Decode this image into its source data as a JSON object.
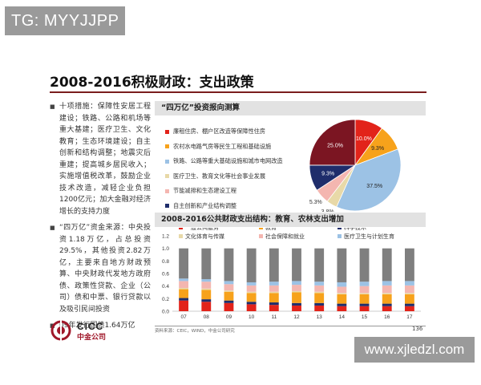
{
  "watermark_top": "TG: MYYJJPP",
  "watermark_bottom": "www.xjledzl.com",
  "slide": {
    "title": "2008-2016积极财政：支出政策",
    "bullets": [
      "十项措施：保障性安居工程建设；铁路、公路和机场等重大基建；医疗卫生、文化教育；生态环境建设；自主创新和结构调整；地震灾后重建；提高城乡居民收入；实施增值税改革，鼓励企业技术改造，减轻企业负担1200亿元；加大金融对经济增长的支持力度",
      "“四万亿”资金来源：中央投资1.18万亿，占总投资29.5%，其他投资2.82万亿，主要来自地方财政预算、中央财政代发地方政府债、政策性贷款、企业（公司）债和中票、银行贷款以及吸引民间投资",
      "09年发行国债1.64万亿"
    ],
    "source": "资料来源：CEIC，WIND，中金公司研究",
    "page_number": "136",
    "logo_en": "CICC",
    "logo_cn": "中金公司"
  },
  "top_panel": {
    "title_quoted": "“四万亿”",
    "title_rest": "投资报向测算"
  },
  "bottom_panel": {
    "title": "2008-2016公共财政支出结构：教育、农林支出增加"
  },
  "colors": {
    "dark_red": "#7b1522",
    "red": "#e2231a",
    "orange": "#f7a21b",
    "light_blue": "#9cc2e5",
    "navy": "#1f2d6b",
    "pink": "#f4b6b0",
    "gray": "#7f7f7f",
    "beige": "#e8d9a8",
    "slate": "#8c9aa8"
  },
  "chart_data": [
    {
      "type": "pie",
      "title": "",
      "series": [
        {
          "name": "廉租住房、棚户区改造等保障性住房",
          "value": 10.0,
          "label": "10.0%",
          "color": "#e2231a"
        },
        {
          "name": "农村水电路气房等民生工程和基础设施",
          "value": 9.3,
          "label": "9.3%",
          "color": "#f7a21b"
        },
        {
          "name": "铁路、公路等重大基础设施和城市电网改造",
          "value": 37.5,
          "label": "37.5%",
          "color": "#9cc2e5"
        },
        {
          "name": "医疗卫生、教育文化等社会事业发展",
          "value": 3.8,
          "label": "3.8%",
          "color": "#e8d9a8"
        },
        {
          "name": "节能减排和生态建设工程",
          "value": 5.3,
          "label": "5.3%",
          "color": "#f4b6b0"
        },
        {
          "name": "自主创新和产业结构调整",
          "value": 9.3,
          "label": "9.3%",
          "color": "#1f2d6b"
        },
        {
          "name": "汶川地震灾后恢复重建",
          "value": 25.0,
          "label": "25.0%",
          "color": "#7b1522"
        }
      ],
      "legend_order": [
        0,
        1,
        2,
        3,
        4,
        5,
        6
      ]
    },
    {
      "type": "bar",
      "stacked": true,
      "categories": [
        "07",
        "08",
        "09",
        "10",
        "11",
        "12",
        "13",
        "14",
        "15",
        "16",
        "17"
      ],
      "ylim": [
        0,
        1.2
      ],
      "yticks": [
        "0.0",
        "0.2",
        "0.4",
        "0.6",
        "0.8",
        "1.0",
        "1.2"
      ],
      "legend_placement": "top",
      "series": [
        {
          "name": "一般公共服务",
          "color": "#e2231a",
          "values": [
            0.17,
            0.15,
            0.13,
            0.11,
            0.1,
            0.09,
            0.09,
            0.08,
            0.08,
            0.08,
            0.08
          ]
        },
        {
          "name": "科学技术",
          "color": "#1f2d6b",
          "values": [
            0.04,
            0.04,
            0.04,
            0.04,
            0.04,
            0.04,
            0.04,
            0.04,
            0.04,
            0.04,
            0.04
          ]
        },
        {
          "name": "教育",
          "color": "#f7a21b",
          "values": [
            0.14,
            0.15,
            0.14,
            0.14,
            0.15,
            0.17,
            0.16,
            0.15,
            0.15,
            0.15,
            0.15
          ]
        },
        {
          "name": "文化体育与传媒",
          "color": "#e8d9a8",
          "values": [
            0.02,
            0.02,
            0.02,
            0.02,
            0.02,
            0.02,
            0.02,
            0.02,
            0.02,
            0.02,
            0.02
          ]
        },
        {
          "name": "社会保障和就业",
          "color": "#f4b6b0",
          "values": [
            0.11,
            0.11,
            0.1,
            0.1,
            0.1,
            0.1,
            0.1,
            0.1,
            0.11,
            0.12,
            0.12
          ]
        },
        {
          "name": "医疗卫生与计划生育",
          "color": "#9cc2e5",
          "values": [
            0.04,
            0.04,
            0.05,
            0.05,
            0.06,
            0.06,
            0.06,
            0.07,
            0.07,
            0.07,
            0.07
          ]
        },
        {
          "name": "其他",
          "color": "#7f7f7f",
          "values": [
            0.48,
            0.49,
            0.52,
            0.54,
            0.53,
            0.52,
            0.53,
            0.54,
            0.53,
            0.52,
            0.52
          ]
        }
      ],
      "legend_names": [
        "一般公共服务",
        "教育",
        "科学技术",
        "文化体育与传媒",
        "社会保障和就业",
        "医疗卫生与计划生育"
      ]
    }
  ]
}
